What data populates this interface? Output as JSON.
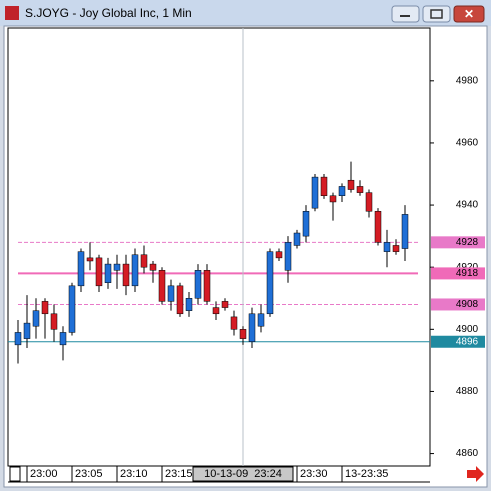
{
  "chart_data": {
    "type": "candlestick",
    "title": "S.JOYG - Joy Global Inc, 1 Min",
    "categories": [
      null,
      "23:00",
      null,
      null,
      null,
      null,
      "23:05",
      null,
      null,
      null,
      null,
      "23:10",
      null,
      null,
      null,
      null,
      "23:15",
      null,
      null,
      null,
      null,
      null,
      null,
      null,
      null,
      null,
      null,
      null,
      null,
      null,
      null,
      "23:30",
      null,
      null,
      null,
      null,
      "13-23:35",
      null,
      null,
      null,
      null,
      null,
      null,
      null
    ],
    "open": [
      4895,
      4897,
      4901,
      4909,
      4905,
      4895,
      4899,
      4914,
      4923,
      4923,
      4915,
      4919,
      4921,
      4914,
      4924,
      4921,
      4919,
      4909,
      4914,
      4906,
      4910,
      4919,
      4907,
      4909,
      4904,
      4900,
      4896,
      4901,
      4905,
      4925,
      4919,
      4927,
      4930,
      4939,
      4949,
      4943,
      4943,
      4948,
      4946,
      4944,
      4938,
      4925,
      4927,
      4926
    ],
    "high": [
      4903,
      4911,
      4910,
      4910,
      4908,
      4901,
      4915,
      4926,
      4928,
      4924,
      4923,
      4924,
      4924,
      4926,
      4927,
      4922,
      4920,
      4916,
      4915,
      4912,
      4921,
      4921,
      4909,
      4910,
      4906,
      4901,
      4907,
      4908,
      4926,
      4926,
      4930,
      4932,
      4940,
      4950,
      4950,
      4944,
      4947,
      4954,
      4948,
      4945,
      4939,
      4932,
      4929,
      4940
    ],
    "low": [
      4889,
      4894,
      4897,
      4897,
      4896,
      4890,
      4898,
      4912,
      4919,
      4912,
      4913,
      4913,
      4911,
      4912,
      4918,
      4915,
      4908,
      4906,
      4904,
      4904,
      4908,
      4908,
      4903,
      4906,
      4898,
      4895,
      4894,
      4899,
      4904,
      4922,
      4915,
      4926,
      4928,
      4938,
      4942,
      4935,
      4941,
      4944,
      4943,
      4936,
      4927,
      4920,
      4924,
      4922
    ],
    "close": [
      4899,
      4902,
      4906,
      4905,
      4900,
      4899,
      4914,
      4925,
      4922,
      4914,
      4921,
      4921,
      4914,
      4924,
      4920,
      4919,
      4909,
      4914,
      4905,
      4910,
      4919,
      4909,
      4905,
      4907,
      4900,
      4897,
      4905,
      4905,
      4925,
      4923,
      4928,
      4931,
      4938,
      4949,
      4943,
      4941,
      4946,
      4945,
      4944,
      4938,
      4928,
      4928,
      4925,
      4937
    ],
    "up_color": "#1f6fd6",
    "down_color": "#d41c24",
    "ylim": [
      4856,
      4997
    ],
    "yticks": [
      4860,
      4880,
      4900,
      4920,
      4940,
      4960,
      4980
    ],
    "levels": [
      {
        "value": 4928,
        "style": "dashed",
        "color": "#e879c8"
      },
      {
        "value": 4918,
        "style": "solid",
        "color": "#f06ab8"
      },
      {
        "value": 4908,
        "style": "dashed",
        "color": "#e879c8"
      },
      {
        "value": 4896,
        "style": "solid",
        "color": "#1f8aa0"
      }
    ],
    "crosshair_label": "10-13-09  23:24"
  }
}
